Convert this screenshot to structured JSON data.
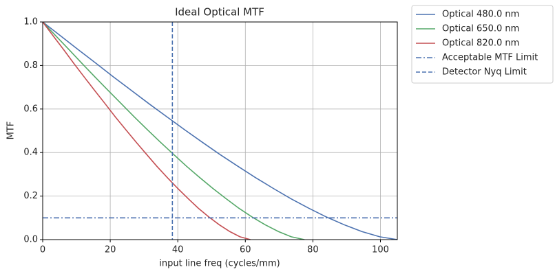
{
  "chart_data": {
    "type": "line",
    "title": "Ideal Optical MTF",
    "x_label": "input line freq (cycles/mm)",
    "y_label": "MTF",
    "xlim": [
      0,
      105
    ],
    "ylim": [
      0,
      1
    ],
    "xticks": [
      0,
      20,
      40,
      60,
      80,
      100
    ],
    "yticks": [
      {
        "value": 0,
        "label": "0.0"
      },
      0.2,
      0.4,
      0.6,
      0.8,
      {
        "value": 1,
        "label": "1.0"
      }
    ],
    "grid": true,
    "legend": "outside upper right",
    "series": [
      {
        "name": "Optical 480.0 nm",
        "color": "#4c72b0",
        "x": [
          0,
          5.3,
          10.5,
          15.8,
          21,
          26.3,
          31.5,
          36.8,
          42,
          47.3,
          52.5,
          57.8,
          63,
          68.3,
          73.5,
          78.8,
          84,
          89.3,
          94.5,
          99.8,
          105
        ],
        "values": [
          1,
          0.936,
          0.873,
          0.81,
          0.747,
          0.685,
          0.624,
          0.564,
          0.505,
          0.447,
          0.391,
          0.337,
          0.285,
          0.235,
          0.188,
          0.144,
          0.104,
          0.068,
          0.037,
          0.013,
          0
        ]
      },
      {
        "name": "Optical 650.0 nm",
        "color": "#55a868",
        "x": [
          0,
          3.9,
          7.8,
          11.6,
          15.5,
          19.4,
          23.3,
          27.1,
          31,
          34.9,
          38.8,
          42.6,
          46.5,
          50.4,
          54.3,
          58.1,
          62,
          65.9,
          69.8,
          73.6,
          77.5
        ],
        "values": [
          1,
          0.936,
          0.873,
          0.81,
          0.747,
          0.685,
          0.624,
          0.564,
          0.505,
          0.447,
          0.391,
          0.337,
          0.285,
          0.235,
          0.188,
          0.144,
          0.104,
          0.068,
          0.037,
          0.013,
          0
        ]
      },
      {
        "name": "Optical 820.0 nm",
        "color": "#c44e52",
        "x": [
          0,
          3.1,
          6.2,
          9.2,
          12.3,
          15.4,
          18.5,
          21.5,
          24.6,
          27.7,
          30.8,
          33.8,
          36.9,
          40,
          43.1,
          46.1,
          49.2,
          52.3,
          55.4,
          58.4,
          61.5
        ],
        "values": [
          1,
          0.936,
          0.873,
          0.81,
          0.747,
          0.685,
          0.624,
          0.564,
          0.505,
          0.447,
          0.391,
          0.337,
          0.285,
          0.235,
          0.188,
          0.144,
          0.104,
          0.068,
          0.037,
          0.013,
          0
        ]
      }
    ],
    "reference_lines": [
      {
        "name": "Acceptable MTF Limit",
        "axis": "y",
        "value": 0.1,
        "color": "#4c72b0",
        "style": "dashdot"
      },
      {
        "name": "Detector Nyq Limit",
        "axis": "x",
        "value": 38.4,
        "color": "#4c72b0",
        "style": "dashed"
      }
    ]
  }
}
